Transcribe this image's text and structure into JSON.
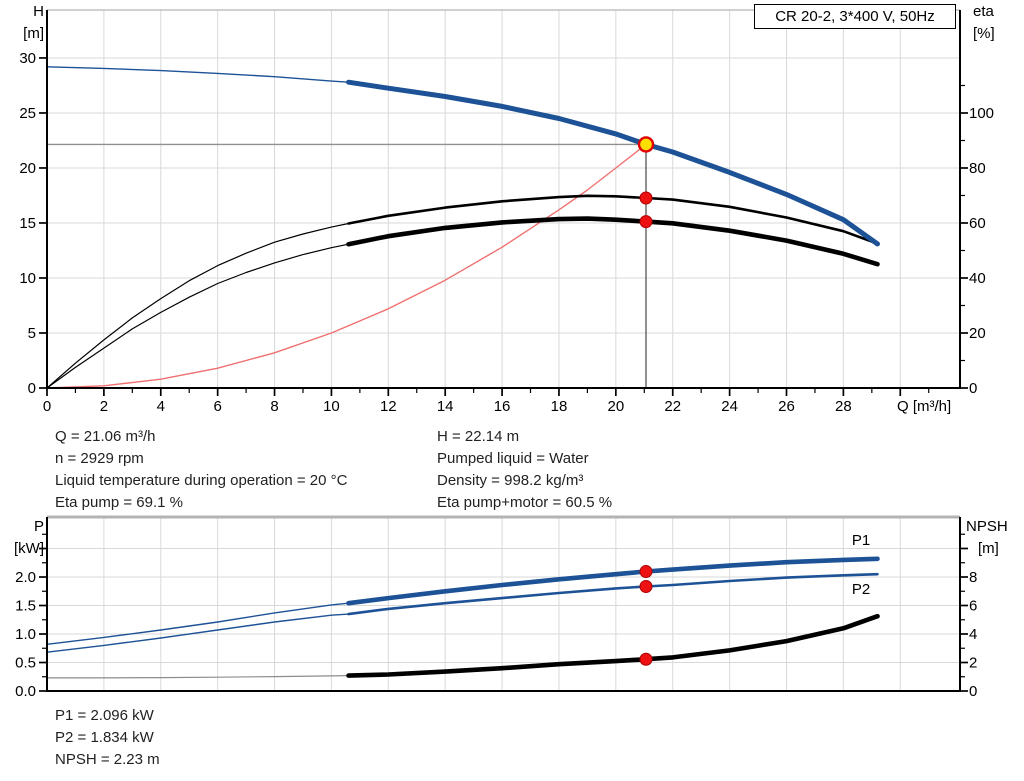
{
  "title_box": "CR 20-2, 3*400 V, 50Hz",
  "info_top_left": [
    "Q = 21.06 m³/h",
    "n = 2929 rpm",
    "Liquid temperature during operation = 20 °C",
    "Eta pump = 69.1 %"
  ],
  "info_top_right": [
    "H = 22.14 m",
    "Pumped liquid = Water",
    "Density = 998.2 kg/m³",
    "Eta pump+motor = 60.5 %"
  ],
  "info_bottom": [
    "P1 = 2.096 kW",
    "P2 = 1.834 kW",
    "NPSH = 2.23 m"
  ],
  "colors": {
    "blue": "#1d5296",
    "black": "#000000",
    "gray": "#8c8c8c",
    "red_curve": "#f07070",
    "marker_red": "#ee1111",
    "marker_red_edge": "#aa0000",
    "marker_yellow": "#ffdf00",
    "grid": "#d9d9d9",
    "crosshair_h": "#8f8f8f",
    "crosshair_v": "#555555",
    "border_top": "#b3b3b3"
  },
  "duty_point": {
    "Q": 21.06,
    "H": 22.14,
    "eta_pump": 69.1,
    "eta_pump_motor": 60.5,
    "P1": 2.096,
    "P2": 1.834,
    "NPSH": 2.23
  },
  "chart_data": [
    {
      "id": "top",
      "type": "line",
      "x_axis": {
        "label": "Q [m³/h]",
        "min": 0,
        "max": 32.1,
        "show_ticks": true,
        "grid": [
          2,
          4,
          6,
          8,
          10,
          12,
          14,
          16,
          18,
          20,
          22,
          24,
          26,
          28,
          30
        ],
        "major": [
          0,
          2,
          4,
          6,
          8,
          10,
          12,
          14,
          16,
          18,
          20,
          22,
          24,
          26,
          28,
          30
        ],
        "minor": [
          1,
          3,
          5,
          7,
          9,
          11,
          13,
          15,
          17,
          19,
          21,
          23,
          25,
          27,
          29,
          31
        ],
        "tick_labels": [
          {
            "v": 0,
            "t": "0"
          },
          {
            "v": 2,
            "t": "2"
          },
          {
            "v": 4,
            "t": "4"
          },
          {
            "v": 6,
            "t": "6"
          },
          {
            "v": 8,
            "t": "8"
          },
          {
            "v": 10,
            "t": "10"
          },
          {
            "v": 12,
            "t": "12"
          },
          {
            "v": 14,
            "t": "14"
          },
          {
            "v": 16,
            "t": "16"
          },
          {
            "v": 18,
            "t": "18"
          },
          {
            "v": 20,
            "t": "20"
          },
          {
            "v": 22,
            "t": "22"
          },
          {
            "v": 24,
            "t": "24"
          },
          {
            "v": 26,
            "t": "26"
          },
          {
            "v": 28,
            "t": "28"
          }
        ]
      },
      "y_left": {
        "title": [
          "H",
          "[m]"
        ],
        "min": 0,
        "max": 34.36,
        "grid": [
          5,
          10,
          15,
          20,
          25,
          30
        ],
        "major": [
          0,
          5,
          10,
          15,
          20,
          25,
          30
        ],
        "minor": [],
        "tick_labels": [
          {
            "v": 0,
            "t": "0"
          },
          {
            "v": 5,
            "t": "5"
          },
          {
            "v": 10,
            "t": "10"
          },
          {
            "v": 15,
            "t": "15"
          },
          {
            "v": 20,
            "t": "20"
          },
          {
            "v": 25,
            "t": "25"
          },
          {
            "v": 30,
            "t": "30"
          }
        ]
      },
      "y_right": {
        "title": [
          "eta",
          "[%]"
        ],
        "min": 0,
        "max": 137.45,
        "grid": [],
        "major": [
          0,
          20,
          40,
          60,
          80,
          100
        ],
        "minor": [
          10,
          30,
          50,
          70,
          90,
          110
        ],
        "tick_labels": [
          {
            "v": 0,
            "t": "0"
          },
          {
            "v": 20,
            "t": "20"
          },
          {
            "v": 40,
            "t": "40"
          },
          {
            "v": 60,
            "t": "60"
          },
          {
            "v": 80,
            "t": "80"
          },
          {
            "v": 100,
            "t": "100"
          }
        ]
      },
      "crosshair": {
        "q": 21.06,
        "value": 22.14
      },
      "series": [
        {
          "name": "system-curve",
          "axis": "left",
          "color": "red_curve",
          "w_thin": 1.4,
          "thick_from": null,
          "points": [
            [
              0,
              0
            ],
            [
              2,
              0.2
            ],
            [
              4,
              0.8
            ],
            [
              6,
              1.8
            ],
            [
              8,
              3.2
            ],
            [
              10,
              5.0
            ],
            [
              12,
              7.2
            ],
            [
              14,
              9.8
            ],
            [
              16,
              12.8
            ],
            [
              18,
              16.2
            ],
            [
              19,
              18.0
            ],
            [
              20,
              20.0
            ],
            [
              21.06,
              22.14
            ]
          ]
        },
        {
          "name": "eta-pump",
          "axis": "right",
          "color": "black",
          "w_thin": 1.2,
          "w_thick": 2.6,
          "thick_from": 10.6,
          "points": [
            [
              0,
              0
            ],
            [
              1,
              9
            ],
            [
              2,
              17.5
            ],
            [
              3,
              25.5
            ],
            [
              4,
              32.5
            ],
            [
              5,
              39
            ],
            [
              6,
              44.5
            ],
            [
              7,
              49
            ],
            [
              8,
              53
            ],
            [
              9,
              56
            ],
            [
              10,
              58.5
            ],
            [
              10.6,
              59.8
            ],
            [
              12,
              62.6
            ],
            [
              14,
              65.6
            ],
            [
              16,
              67.9
            ],
            [
              18,
              69.4
            ],
            [
              19,
              69.9
            ],
            [
              20,
              69.7
            ],
            [
              21.06,
              69.1
            ],
            [
              22,
              68.5
            ],
            [
              24,
              65.9
            ],
            [
              26,
              62
            ],
            [
              28,
              57
            ],
            [
              29.2,
              52.5
            ]
          ]
        },
        {
          "name": "eta-pump-motor",
          "axis": "right",
          "color": "black",
          "w_thin": 1.2,
          "w_thick": 4.6,
          "thick_from": 10.6,
          "points": [
            [
              0,
              0
            ],
            [
              1,
              7.5
            ],
            [
              2,
              14.5
            ],
            [
              3,
              21.5
            ],
            [
              4,
              27.5
            ],
            [
              5,
              33
            ],
            [
              6,
              38
            ],
            [
              7,
              42
            ],
            [
              8,
              45.5
            ],
            [
              9,
              48.5
            ],
            [
              10,
              51
            ],
            [
              10.6,
              52.3
            ],
            [
              12,
              55.2
            ],
            [
              14,
              58.2
            ],
            [
              16,
              60.2
            ],
            [
              18,
              61.4
            ],
            [
              19,
              61.6
            ],
            [
              20,
              61.2
            ],
            [
              21.06,
              60.5
            ],
            [
              22,
              59.9
            ],
            [
              24,
              57.2
            ],
            [
              26,
              53.6
            ],
            [
              28,
              48.8
            ],
            [
              29.2,
              45
            ]
          ]
        },
        {
          "name": "head",
          "axis": "left",
          "color": "blue",
          "w_thin": 1.4,
          "w_thick": 5,
          "thick_from": 10.6,
          "points": [
            [
              0,
              29.2
            ],
            [
              2,
              29.05
            ],
            [
              4,
              28.85
            ],
            [
              6,
              28.6
            ],
            [
              8,
              28.3
            ],
            [
              10,
              27.9
            ],
            [
              10.6,
              27.8
            ],
            [
              12,
              27.25
            ],
            [
              14,
              26.5
            ],
            [
              16,
              25.6
            ],
            [
              18,
              24.5
            ],
            [
              20,
              23.1
            ],
            [
              21.06,
              22.14
            ],
            [
              22,
              21.45
            ],
            [
              24,
              19.6
            ],
            [
              26,
              17.6
            ],
            [
              28,
              15.3
            ],
            [
              29.2,
              13.1
            ]
          ]
        }
      ],
      "markers": [
        {
          "name": "duty-point",
          "q": 21.06,
          "v": 22.14,
          "axis": "left",
          "style": "duty"
        },
        {
          "name": "eta-pump-dot",
          "q": 21.06,
          "v": 69.1,
          "axis": "right",
          "style": "dot"
        },
        {
          "name": "eta-pump-motor-dot",
          "q": 21.06,
          "v": 60.5,
          "axis": "right",
          "style": "dot"
        }
      ],
      "labels": []
    },
    {
      "id": "bottom",
      "type": "line",
      "x_axis": {
        "label": "",
        "min": 0,
        "max": 32.1,
        "show_ticks": false,
        "grid": [
          2,
          4,
          6,
          8,
          10,
          12,
          14,
          16,
          18,
          20,
          22,
          24,
          26,
          28,
          30
        ],
        "major": [],
        "minor": [],
        "tick_labels": []
      },
      "y_left": {
        "title": [
          "P",
          "[kW]"
        ],
        "min": 0,
        "max": 3.053,
        "grid": [
          0.5,
          1.0,
          1.5,
          2.0,
          2.5
        ],
        "major": [
          0,
          0.5,
          1.0,
          1.5,
          2.0,
          2.5
        ],
        "minor": [
          0.25,
          0.75,
          1.25,
          1.75,
          2.25,
          2.75
        ],
        "tick_labels": [
          {
            "v": 0,
            "t": "0.0"
          },
          {
            "v": 0.5,
            "t": "0.5"
          },
          {
            "v": 1,
            "t": "1.0"
          },
          {
            "v": 1.5,
            "t": "1.5"
          },
          {
            "v": 2,
            "t": "2.0"
          }
        ]
      },
      "y_right": {
        "title": [
          "NPSH",
          "[m]"
        ],
        "min": 0,
        "max": 12.21,
        "grid": [],
        "major": [
          0,
          2,
          4,
          6,
          8,
          10
        ],
        "minor": [
          1,
          3,
          5,
          7,
          9,
          11
        ],
        "tick_labels": [
          {
            "v": 0,
            "t": "0"
          },
          {
            "v": 2,
            "t": "2"
          },
          {
            "v": 4,
            "t": "4"
          },
          {
            "v": 6,
            "t": "6"
          },
          {
            "v": 8,
            "t": "8"
          }
        ]
      },
      "crosshair": null,
      "series": [
        {
          "name": "npsh",
          "axis": "right",
          "color": "black",
          "thin_color": "gray",
          "w_thin": 1.2,
          "w_thick": 4.6,
          "thick_from": 10.6,
          "points": [
            [
              0,
              0.92
            ],
            [
              2,
              0.92
            ],
            [
              4,
              0.94
            ],
            [
              6,
              0.97
            ],
            [
              8,
              1.01
            ],
            [
              10,
              1.06
            ],
            [
              10.6,
              1.08
            ],
            [
              12,
              1.16
            ],
            [
              14,
              1.36
            ],
            [
              16,
              1.6
            ],
            [
              18,
              1.88
            ],
            [
              20,
              2.1
            ],
            [
              21.06,
              2.23
            ],
            [
              22,
              2.36
            ],
            [
              24,
              2.85
            ],
            [
              26,
              3.5
            ],
            [
              28,
              4.4
            ],
            [
              29.2,
              5.25
            ]
          ]
        },
        {
          "name": "p2",
          "axis": "left",
          "color": "blue",
          "w_thin": 1.4,
          "w_thick": 2.6,
          "thick_from": 10.6,
          "points": [
            [
              0,
              0.68
            ],
            [
              2,
              0.8
            ],
            [
              4,
              0.93
            ],
            [
              6,
              1.07
            ],
            [
              8,
              1.21
            ],
            [
              10,
              1.33
            ],
            [
              10.6,
              1.35
            ],
            [
              12,
              1.44
            ],
            [
              14,
              1.54
            ],
            [
              16,
              1.63
            ],
            [
              18,
              1.72
            ],
            [
              20,
              1.8
            ],
            [
              21.06,
              1.834
            ],
            [
              22,
              1.86
            ],
            [
              24,
              1.93
            ],
            [
              26,
              1.99
            ],
            [
              28,
              2.03
            ],
            [
              29.2,
              2.05
            ]
          ]
        },
        {
          "name": "p1",
          "axis": "left",
          "color": "blue",
          "w_thin": 1.4,
          "w_thick": 4.6,
          "thick_from": 10.6,
          "points": [
            [
              0,
              0.82
            ],
            [
              2,
              0.94
            ],
            [
              4,
              1.07
            ],
            [
              6,
              1.21
            ],
            [
              8,
              1.37
            ],
            [
              10,
              1.51
            ],
            [
              10.6,
              1.54
            ],
            [
              12,
              1.63
            ],
            [
              14,
              1.75
            ],
            [
              16,
              1.86
            ],
            [
              18,
              1.96
            ],
            [
              20,
              2.05
            ],
            [
              21.06,
              2.096
            ],
            [
              22,
              2.13
            ],
            [
              24,
              2.2
            ],
            [
              26,
              2.26
            ],
            [
              28,
              2.3
            ],
            [
              29.2,
              2.32
            ]
          ]
        }
      ],
      "markers": [
        {
          "name": "p1-dot",
          "q": 21.06,
          "v": 2.096,
          "axis": "left",
          "style": "dot"
        },
        {
          "name": "p2-dot",
          "q": 21.06,
          "v": 1.834,
          "axis": "left",
          "style": "dot"
        },
        {
          "name": "npsh-dot",
          "q": 21.06,
          "v": 2.23,
          "axis": "right",
          "style": "dot"
        }
      ],
      "labels": [
        {
          "text": "P1",
          "q": 28.3,
          "v": 2.56,
          "axis": "left",
          "color": "blue"
        },
        {
          "text": "P2",
          "q": 28.3,
          "v": 1.7,
          "axis": "left",
          "color": "blue"
        }
      ]
    }
  ]
}
